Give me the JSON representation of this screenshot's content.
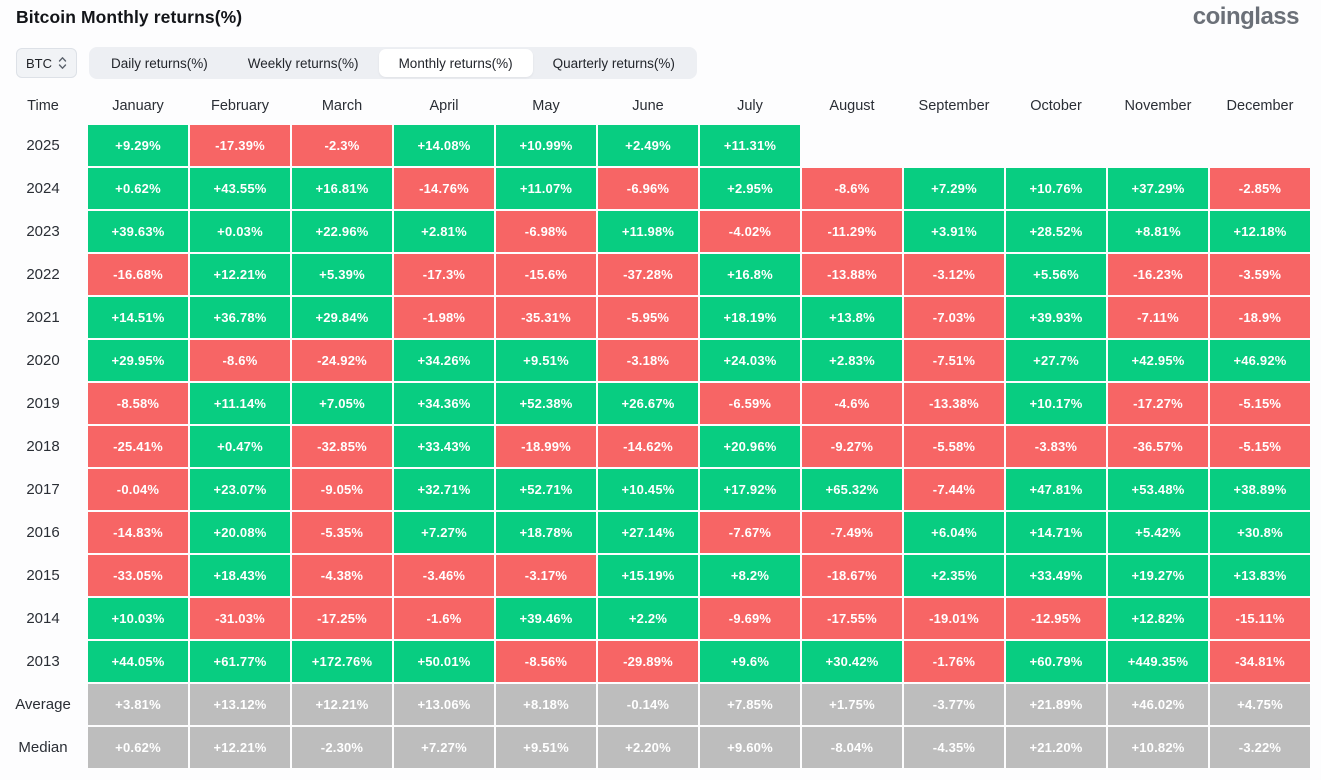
{
  "page": {
    "title": "Bitcoin Monthly returns(%)",
    "logo": "coinglass"
  },
  "controls": {
    "symbol_select": {
      "value": "BTC"
    },
    "tabs": [
      {
        "label": "Daily returns(%)",
        "active": false
      },
      {
        "label": "Weekly returns(%)",
        "active": false
      },
      {
        "label": "Monthly returns(%)",
        "active": true
      },
      {
        "label": "Quarterly returns(%)",
        "active": false
      }
    ]
  },
  "colors": {
    "up": "#08CD81",
    "down": "#F76565",
    "neutral": "#BDBDBD"
  },
  "chart_data": {
    "type": "heatmap",
    "title": "Bitcoin Monthly returns(%)",
    "time_header": "Time",
    "month_headers": [
      "January",
      "February",
      "March",
      "April",
      "May",
      "June",
      "July",
      "August",
      "September",
      "October",
      "November",
      "December"
    ],
    "rows": [
      {
        "label": "2025",
        "cells": [
          {
            "v": "+9.29%",
            "t": "up"
          },
          {
            "v": "-17.39%",
            "t": "down"
          },
          {
            "v": "-2.3%",
            "t": "down"
          },
          {
            "v": "+14.08%",
            "t": "up"
          },
          {
            "v": "+10.99%",
            "t": "up"
          },
          {
            "v": "+2.49%",
            "t": "up"
          },
          {
            "v": "+11.31%",
            "t": "up"
          },
          null,
          null,
          null,
          null,
          null
        ]
      },
      {
        "label": "2024",
        "cells": [
          {
            "v": "+0.62%",
            "t": "up"
          },
          {
            "v": "+43.55%",
            "t": "up"
          },
          {
            "v": "+16.81%",
            "t": "up"
          },
          {
            "v": "-14.76%",
            "t": "down"
          },
          {
            "v": "+11.07%",
            "t": "up"
          },
          {
            "v": "-6.96%",
            "t": "down"
          },
          {
            "v": "+2.95%",
            "t": "up"
          },
          {
            "v": "-8.6%",
            "t": "down"
          },
          {
            "v": "+7.29%",
            "t": "up"
          },
          {
            "v": "+10.76%",
            "t": "up"
          },
          {
            "v": "+37.29%",
            "t": "up"
          },
          {
            "v": "-2.85%",
            "t": "down"
          }
        ]
      },
      {
        "label": "2023",
        "cells": [
          {
            "v": "+39.63%",
            "t": "up"
          },
          {
            "v": "+0.03%",
            "t": "up"
          },
          {
            "v": "+22.96%",
            "t": "up"
          },
          {
            "v": "+2.81%",
            "t": "up"
          },
          {
            "v": "-6.98%",
            "t": "down"
          },
          {
            "v": "+11.98%",
            "t": "up"
          },
          {
            "v": "-4.02%",
            "t": "down"
          },
          {
            "v": "-11.29%",
            "t": "down"
          },
          {
            "v": "+3.91%",
            "t": "up"
          },
          {
            "v": "+28.52%",
            "t": "up"
          },
          {
            "v": "+8.81%",
            "t": "up"
          },
          {
            "v": "+12.18%",
            "t": "up"
          }
        ]
      },
      {
        "label": "2022",
        "cells": [
          {
            "v": "-16.68%",
            "t": "down"
          },
          {
            "v": "+12.21%",
            "t": "up"
          },
          {
            "v": "+5.39%",
            "t": "up"
          },
          {
            "v": "-17.3%",
            "t": "down"
          },
          {
            "v": "-15.6%",
            "t": "down"
          },
          {
            "v": "-37.28%",
            "t": "down"
          },
          {
            "v": "+16.8%",
            "t": "up"
          },
          {
            "v": "-13.88%",
            "t": "down"
          },
          {
            "v": "-3.12%",
            "t": "down"
          },
          {
            "v": "+5.56%",
            "t": "up"
          },
          {
            "v": "-16.23%",
            "t": "down"
          },
          {
            "v": "-3.59%",
            "t": "down"
          }
        ]
      },
      {
        "label": "2021",
        "cells": [
          {
            "v": "+14.51%",
            "t": "up"
          },
          {
            "v": "+36.78%",
            "t": "up"
          },
          {
            "v": "+29.84%",
            "t": "up"
          },
          {
            "v": "-1.98%",
            "t": "down"
          },
          {
            "v": "-35.31%",
            "t": "down"
          },
          {
            "v": "-5.95%",
            "t": "down"
          },
          {
            "v": "+18.19%",
            "t": "up"
          },
          {
            "v": "+13.8%",
            "t": "up"
          },
          {
            "v": "-7.03%",
            "t": "down"
          },
          {
            "v": "+39.93%",
            "t": "up"
          },
          {
            "v": "-7.11%",
            "t": "down"
          },
          {
            "v": "-18.9%",
            "t": "down"
          }
        ]
      },
      {
        "label": "2020",
        "cells": [
          {
            "v": "+29.95%",
            "t": "up"
          },
          {
            "v": "-8.6%",
            "t": "down"
          },
          {
            "v": "-24.92%",
            "t": "down"
          },
          {
            "v": "+34.26%",
            "t": "up"
          },
          {
            "v": "+9.51%",
            "t": "up"
          },
          {
            "v": "-3.18%",
            "t": "down"
          },
          {
            "v": "+24.03%",
            "t": "up"
          },
          {
            "v": "+2.83%",
            "t": "up"
          },
          {
            "v": "-7.51%",
            "t": "down"
          },
          {
            "v": "+27.7%",
            "t": "up"
          },
          {
            "v": "+42.95%",
            "t": "up"
          },
          {
            "v": "+46.92%",
            "t": "up"
          }
        ]
      },
      {
        "label": "2019",
        "cells": [
          {
            "v": "-8.58%",
            "t": "down"
          },
          {
            "v": "+11.14%",
            "t": "up"
          },
          {
            "v": "+7.05%",
            "t": "up"
          },
          {
            "v": "+34.36%",
            "t": "up"
          },
          {
            "v": "+52.38%",
            "t": "up"
          },
          {
            "v": "+26.67%",
            "t": "up"
          },
          {
            "v": "-6.59%",
            "t": "down"
          },
          {
            "v": "-4.6%",
            "t": "down"
          },
          {
            "v": "-13.38%",
            "t": "down"
          },
          {
            "v": "+10.17%",
            "t": "up"
          },
          {
            "v": "-17.27%",
            "t": "down"
          },
          {
            "v": "-5.15%",
            "t": "down"
          }
        ]
      },
      {
        "label": "2018",
        "cells": [
          {
            "v": "-25.41%",
            "t": "down"
          },
          {
            "v": "+0.47%",
            "t": "up"
          },
          {
            "v": "-32.85%",
            "t": "down"
          },
          {
            "v": "+33.43%",
            "t": "up"
          },
          {
            "v": "-18.99%",
            "t": "down"
          },
          {
            "v": "-14.62%",
            "t": "down"
          },
          {
            "v": "+20.96%",
            "t": "up"
          },
          {
            "v": "-9.27%",
            "t": "down"
          },
          {
            "v": "-5.58%",
            "t": "down"
          },
          {
            "v": "-3.83%",
            "t": "down"
          },
          {
            "v": "-36.57%",
            "t": "down"
          },
          {
            "v": "-5.15%",
            "t": "down"
          }
        ]
      },
      {
        "label": "2017",
        "cells": [
          {
            "v": "-0.04%",
            "t": "down"
          },
          {
            "v": "+23.07%",
            "t": "up"
          },
          {
            "v": "-9.05%",
            "t": "down"
          },
          {
            "v": "+32.71%",
            "t": "up"
          },
          {
            "v": "+52.71%",
            "t": "up"
          },
          {
            "v": "+10.45%",
            "t": "up"
          },
          {
            "v": "+17.92%",
            "t": "up"
          },
          {
            "v": "+65.32%",
            "t": "up"
          },
          {
            "v": "-7.44%",
            "t": "down"
          },
          {
            "v": "+47.81%",
            "t": "up"
          },
          {
            "v": "+53.48%",
            "t": "up"
          },
          {
            "v": "+38.89%",
            "t": "up"
          }
        ]
      },
      {
        "label": "2016",
        "cells": [
          {
            "v": "-14.83%",
            "t": "down"
          },
          {
            "v": "+20.08%",
            "t": "up"
          },
          {
            "v": "-5.35%",
            "t": "down"
          },
          {
            "v": "+7.27%",
            "t": "up"
          },
          {
            "v": "+18.78%",
            "t": "up"
          },
          {
            "v": "+27.14%",
            "t": "up"
          },
          {
            "v": "-7.67%",
            "t": "down"
          },
          {
            "v": "-7.49%",
            "t": "down"
          },
          {
            "v": "+6.04%",
            "t": "up"
          },
          {
            "v": "+14.71%",
            "t": "up"
          },
          {
            "v": "+5.42%",
            "t": "up"
          },
          {
            "v": "+30.8%",
            "t": "up"
          }
        ]
      },
      {
        "label": "2015",
        "cells": [
          {
            "v": "-33.05%",
            "t": "down"
          },
          {
            "v": "+18.43%",
            "t": "up"
          },
          {
            "v": "-4.38%",
            "t": "down"
          },
          {
            "v": "-3.46%",
            "t": "down"
          },
          {
            "v": "-3.17%",
            "t": "down"
          },
          {
            "v": "+15.19%",
            "t": "up"
          },
          {
            "v": "+8.2%",
            "t": "up"
          },
          {
            "v": "-18.67%",
            "t": "down"
          },
          {
            "v": "+2.35%",
            "t": "up"
          },
          {
            "v": "+33.49%",
            "t": "up"
          },
          {
            "v": "+19.27%",
            "t": "up"
          },
          {
            "v": "+13.83%",
            "t": "up"
          }
        ]
      },
      {
        "label": "2014",
        "cells": [
          {
            "v": "+10.03%",
            "t": "up"
          },
          {
            "v": "-31.03%",
            "t": "down"
          },
          {
            "v": "-17.25%",
            "t": "down"
          },
          {
            "v": "-1.6%",
            "t": "down"
          },
          {
            "v": "+39.46%",
            "t": "up"
          },
          {
            "v": "+2.2%",
            "t": "up"
          },
          {
            "v": "-9.69%",
            "t": "down"
          },
          {
            "v": "-17.55%",
            "t": "down"
          },
          {
            "v": "-19.01%",
            "t": "down"
          },
          {
            "v": "-12.95%",
            "t": "down"
          },
          {
            "v": "+12.82%",
            "t": "up"
          },
          {
            "v": "-15.11%",
            "t": "down"
          }
        ]
      },
      {
        "label": "2013",
        "cells": [
          {
            "v": "+44.05%",
            "t": "up"
          },
          {
            "v": "+61.77%",
            "t": "up"
          },
          {
            "v": "+172.76%",
            "t": "up"
          },
          {
            "v": "+50.01%",
            "t": "up"
          },
          {
            "v": "-8.56%",
            "t": "down"
          },
          {
            "v": "-29.89%",
            "t": "down"
          },
          {
            "v": "+9.6%",
            "t": "up"
          },
          {
            "v": "+30.42%",
            "t": "up"
          },
          {
            "v": "-1.76%",
            "t": "down"
          },
          {
            "v": "+60.79%",
            "t": "up"
          },
          {
            "v": "+449.35%",
            "t": "up"
          },
          {
            "v": "-34.81%",
            "t": "down"
          }
        ]
      },
      {
        "label": "Average",
        "cells": [
          {
            "v": "+3.81%",
            "t": "neutral"
          },
          {
            "v": "+13.12%",
            "t": "neutral"
          },
          {
            "v": "+12.21%",
            "t": "neutral"
          },
          {
            "v": "+13.06%",
            "t": "neutral"
          },
          {
            "v": "+8.18%",
            "t": "neutral"
          },
          {
            "v": "-0.14%",
            "t": "neutral"
          },
          {
            "v": "+7.85%",
            "t": "neutral"
          },
          {
            "v": "+1.75%",
            "t": "neutral"
          },
          {
            "v": "-3.77%",
            "t": "neutral"
          },
          {
            "v": "+21.89%",
            "t": "neutral"
          },
          {
            "v": "+46.02%",
            "t": "neutral"
          },
          {
            "v": "+4.75%",
            "t": "neutral"
          }
        ]
      },
      {
        "label": "Median",
        "cells": [
          {
            "v": "+0.62%",
            "t": "neutral"
          },
          {
            "v": "+12.21%",
            "t": "neutral"
          },
          {
            "v": "-2.30%",
            "t": "neutral"
          },
          {
            "v": "+7.27%",
            "t": "neutral"
          },
          {
            "v": "+9.51%",
            "t": "neutral"
          },
          {
            "v": "+2.20%",
            "t": "neutral"
          },
          {
            "v": "+9.60%",
            "t": "neutral"
          },
          {
            "v": "-8.04%",
            "t": "neutral"
          },
          {
            "v": "-4.35%",
            "t": "neutral"
          },
          {
            "v": "+21.20%",
            "t": "neutral"
          },
          {
            "v": "+10.82%",
            "t": "neutral"
          },
          {
            "v": "-3.22%",
            "t": "neutral"
          }
        ]
      }
    ]
  }
}
